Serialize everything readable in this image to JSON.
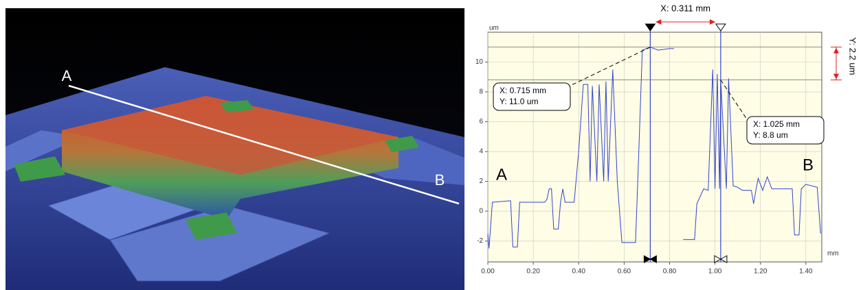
{
  "image": {
    "labels": [
      "A",
      "B"
    ]
  },
  "chart_data": {
    "type": "line",
    "y_unit": "um",
    "x_unit": "mm",
    "point_labels": [
      "A",
      "B"
    ],
    "x": [
      0.0,
      0.005,
      0.02,
      0.1,
      0.11,
      0.13,
      0.14,
      0.25,
      0.26,
      0.27,
      0.28,
      0.29,
      0.31,
      0.32,
      0.33,
      0.34,
      0.38,
      0.4,
      0.42,
      0.44,
      0.45,
      0.46,
      0.48,
      0.49,
      0.51,
      0.52,
      0.53,
      0.55,
      0.57,
      0.59,
      0.65,
      0.66,
      0.68,
      0.715,
      0.75,
      0.8,
      0.82,
      0.84,
      0.86,
      0.91,
      0.92,
      0.95,
      0.97,
      0.99,
      1.0,
      1.01,
      1.02,
      1.025,
      1.05,
      1.06,
      1.08,
      1.1,
      1.12,
      1.16,
      1.17,
      1.18,
      1.19,
      1.21,
      1.23,
      1.25,
      1.34,
      1.35,
      1.37,
      1.38,
      1.4,
      1.45,
      1.465
    ],
    "series": [
      {
        "color": "#3344cc",
        "values": [
          -1.5,
          -2.5,
          0.6,
          0.7,
          -2.4,
          -2.4,
          0.6,
          0.6,
          0.8,
          1.5,
          1.5,
          -1.2,
          -1.2,
          0.6,
          1.5,
          0.6,
          0.6,
          4.0,
          8.5,
          8.5,
          2.0,
          8.4,
          2.0,
          8.5,
          2.0,
          8.7,
          2.0,
          9.5,
          2.0,
          -2.1,
          -2.1,
          2.0,
          10.8,
          11.0,
          10.8,
          10.9,
          10.9,
          null,
          -1.9,
          -1.9,
          0.5,
          1.5,
          1.4,
          9.5,
          1.5,
          9.2,
          1.5,
          8.8,
          1.5,
          8.9,
          1.7,
          1.6,
          1.4,
          1.4,
          0.5,
          1.4,
          2.2,
          1.4,
          2.3,
          1.5,
          1.5,
          -1.6,
          -1.6,
          1.5,
          1.8,
          1.6,
          -1.5
        ]
      }
    ],
    "xlim": [
      0,
      1.47
    ],
    "ylim": [
      -3.4,
      12
    ],
    "xticks": [
      {
        "value": 0,
        "label": "0.00"
      },
      {
        "value": 0.2,
        "label": "0.20"
      },
      {
        "value": 0.4,
        "label": "0.40"
      },
      {
        "value": 0.6,
        "label": "0.60"
      },
      {
        "value": 0.8,
        "label": "0.80"
      },
      {
        "value": 1.0,
        "label": "1.00"
      },
      {
        "value": 1.2,
        "label": "1.20"
      },
      {
        "value": 1.4,
        "label": "1.40"
      }
    ],
    "yticks": [
      -2,
      0,
      2,
      4,
      6,
      8,
      10
    ],
    "grid": true,
    "cursors": [
      {
        "x": 0.715,
        "y": 11.0,
        "labels": [
          "X: 0.715 mm",
          "Y: 11.0 um"
        ],
        "color": "#3344cc"
      },
      {
        "x": 1.025,
        "y": 8.8,
        "labels": [
          "X: 1.025 mm",
          "Y: 8.8 um"
        ],
        "color": "#3344cc"
      }
    ],
    "delta_x_label": "X: 0.311 mm",
    "delta_y_label": "Y: 2.2 um"
  }
}
